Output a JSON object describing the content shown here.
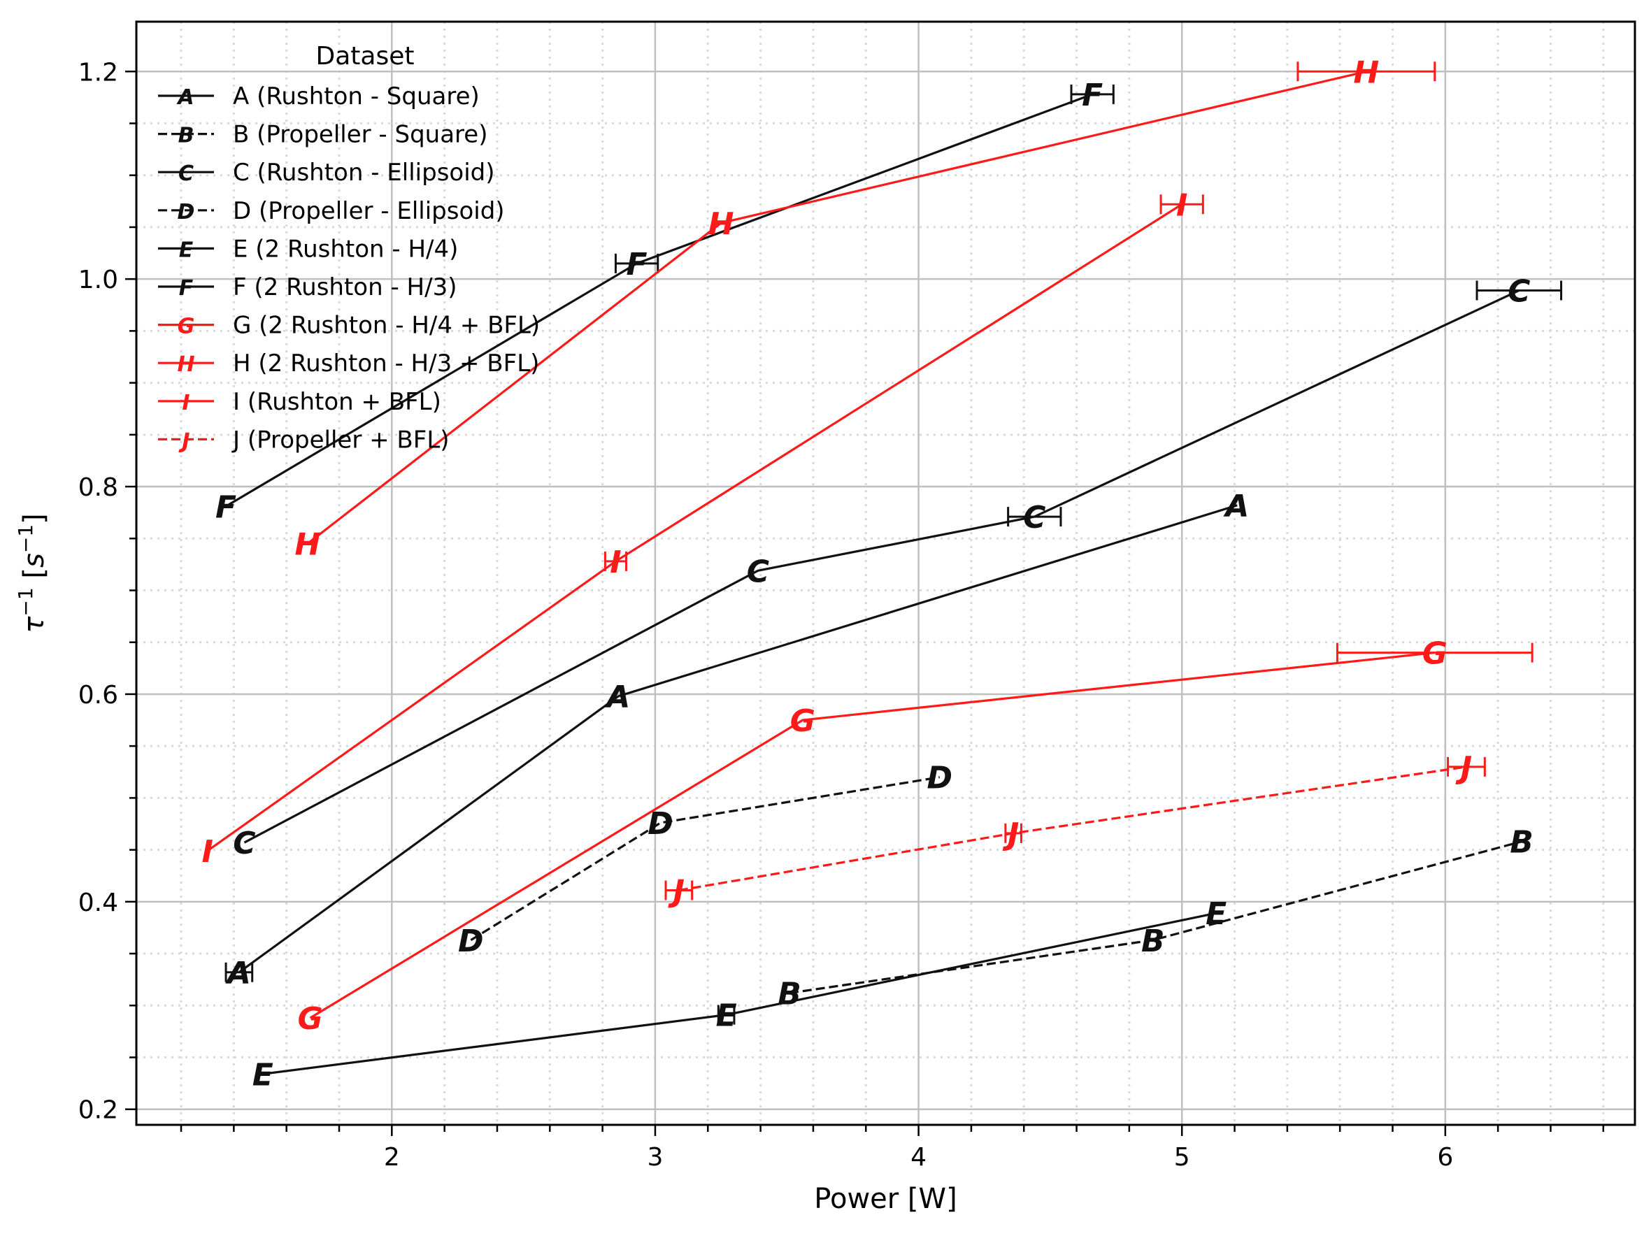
{
  "chart_data": {
    "type": "line",
    "title": "",
    "xlabel": "Power [W]",
    "ylabel": "τ⁻¹ [s⁻¹]",
    "ylabel_parts": {
      "base": "τ",
      "base_exp": "−1",
      "unit_open": " [",
      "unit": "s",
      "unit_exp": "−1",
      "unit_close": "]"
    },
    "xlim": [
      1.03,
      6.72
    ],
    "ylim": [
      0.185,
      1.248
    ],
    "xticks": [
      2,
      3,
      4,
      5,
      6
    ],
    "xtick_labels": [
      "2",
      "3",
      "4",
      "5",
      "6"
    ],
    "yticks": [
      0.2,
      0.4,
      0.6,
      0.8,
      1.0,
      1.2
    ],
    "ytick_labels": [
      "0.2",
      "0.4",
      "0.6",
      "0.8",
      "1.0",
      "1.2"
    ],
    "x_minor_step": 0.2,
    "y_minor_step": 0.05,
    "grid": true,
    "legend": {
      "title": "Dataset",
      "placement": "top-left"
    },
    "colors": {
      "black": "#111111",
      "red": "#ff1a1a",
      "grid_major": "#bfbfbf",
      "grid_minor": "#d9d9d9"
    },
    "series": [
      {
        "name": "A (Rushton - Square)",
        "marker": "A",
        "color": "black",
        "style": "solid",
        "points": [
          {
            "x": 1.42,
            "y": 0.332,
            "xerr": 0.05
          },
          {
            "x": 2.86,
            "y": 0.598
          },
          {
            "x": 5.21,
            "y": 0.782
          }
        ]
      },
      {
        "name": "B (Propeller - Square)",
        "marker": "B",
        "color": "black",
        "style": "dashed",
        "points": [
          {
            "x": 3.51,
            "y": 0.312
          },
          {
            "x": 4.89,
            "y": 0.363
          },
          {
            "x": 6.29,
            "y": 0.458
          }
        ]
      },
      {
        "name": "C (Rushton - Ellipsoid)",
        "marker": "C",
        "color": "black",
        "style": "solid",
        "points": [
          {
            "x": 1.44,
            "y": 0.457
          },
          {
            "x": 3.39,
            "y": 0.719
          },
          {
            "x": 4.44,
            "y": 0.771,
            "xerr": 0.1
          },
          {
            "x": 6.28,
            "y": 0.989,
            "xerr": 0.16
          }
        ]
      },
      {
        "name": "D (Propeller - Ellipsoid)",
        "marker": "D",
        "color": "black",
        "style": "dashed",
        "points": [
          {
            "x": 2.3,
            "y": 0.363
          },
          {
            "x": 3.02,
            "y": 0.476
          },
          {
            "x": 4.08,
            "y": 0.52
          }
        ]
      },
      {
        "name": "E (2 Rushton - H/4)",
        "marker": "E",
        "color": "black",
        "style": "solid",
        "points": [
          {
            "x": 1.51,
            "y": 0.234
          },
          {
            "x": 3.27,
            "y": 0.291,
            "xerr": 0.03
          },
          {
            "x": 5.13,
            "y": 0.389
          }
        ]
      },
      {
        "name": "F (2 Rushton - H/3)",
        "marker": "F",
        "color": "black",
        "style": "solid",
        "points": [
          {
            "x": 1.37,
            "y": 0.781
          },
          {
            "x": 2.93,
            "y": 1.015,
            "xerr": 0.08
          },
          {
            "x": 4.66,
            "y": 1.178,
            "xerr": 0.08
          }
        ]
      },
      {
        "name": "G (2 Rushton - H/4 + BFL)",
        "marker": "G",
        "color": "red",
        "style": "solid",
        "points": [
          {
            "x": 1.69,
            "y": 0.288
          },
          {
            "x": 3.56,
            "y": 0.575
          },
          {
            "x": 5.96,
            "y": 0.64,
            "xerr": 0.37
          }
        ]
      },
      {
        "name": "H (2 Rushton - H/3 + BFL)",
        "marker": "H",
        "color": "red",
        "style": "solid",
        "points": [
          {
            "x": 1.68,
            "y": 0.745
          },
          {
            "x": 3.25,
            "y": 1.054
          },
          {
            "x": 5.7,
            "y": 1.2,
            "xerr": 0.26
          }
        ]
      },
      {
        "name": "I (Rushton + BFL)",
        "marker": "I",
        "color": "red",
        "style": "solid",
        "points": [
          {
            "x": 1.3,
            "y": 0.449
          },
          {
            "x": 2.85,
            "y": 0.728,
            "xerr": 0.04
          },
          {
            "x": 5.0,
            "y": 1.072,
            "xerr": 0.08
          }
        ]
      },
      {
        "name": "J (Propeller + BFL)",
        "marker": "J",
        "color": "red",
        "style": "dashed",
        "points": [
          {
            "x": 3.09,
            "y": 0.411,
            "xerr": 0.05
          },
          {
            "x": 4.36,
            "y": 0.466,
            "xerr": 0.03
          },
          {
            "x": 6.08,
            "y": 0.53,
            "xerr": 0.07
          }
        ]
      }
    ]
  }
}
